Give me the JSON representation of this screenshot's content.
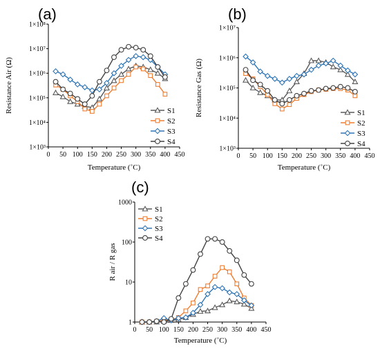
{
  "chart_data": [
    {
      "panel": "(a)",
      "type": "line",
      "xlabel": "Temperature (˚C)",
      "ylabel": "Resistance Air  (Ω)",
      "xlim": [
        0,
        450
      ],
      "xticks": [
        0,
        50,
        100,
        150,
        200,
        250,
        300,
        350,
        400,
        450
      ],
      "ylim": [
        1000,
        100000000
      ],
      "yscale": "log",
      "yticks": [
        {
          "v": 1000,
          "label": "1×10³"
        },
        {
          "v": 10000,
          "label": "1×10⁴"
        },
        {
          "v": 100000,
          "label": "1×10⁵"
        },
        {
          "v": 1000000,
          "label": "1×10⁶"
        },
        {
          "v": 10000000,
          "label": "1×10⁷"
        },
        {
          "v": 100000000,
          "label": "1×10⁸"
        }
      ],
      "grid": false,
      "legend_position": "right",
      "series": [
        {
          "name": "S1",
          "color": "#595959",
          "marker": "triangle",
          "x": [
            25,
            50,
            75,
            100,
            125,
            150,
            175,
            200,
            225,
            250,
            275,
            300,
            325,
            350,
            375,
            400
          ],
          "y": [
            160000,
            110000,
            70000,
            55000,
            45000,
            40000,
            90000,
            250000,
            500000,
            900000,
            1500000,
            2000000,
            1800000,
            1400000,
            1000000,
            600000
          ]
        },
        {
          "name": "S2",
          "color": "#ED7D31",
          "marker": "square",
          "x": [
            25,
            50,
            75,
            100,
            125,
            150,
            175,
            200,
            225,
            250,
            275,
            300,
            325,
            350,
            375,
            400
          ],
          "y": [
            330000,
            220000,
            120000,
            70000,
            35000,
            28000,
            55000,
            120000,
            250000,
            500000,
            900000,
            1800000,
            1500000,
            800000,
            350000,
            140000
          ]
        },
        {
          "name": "S3",
          "color": "#2E75B6",
          "marker": "diamond",
          "x": [
            25,
            50,
            75,
            100,
            125,
            150,
            175,
            200,
            225,
            250,
            275,
            300,
            325,
            350,
            375,
            400
          ],
          "y": [
            1200000,
            900000,
            550000,
            350000,
            270000,
            200000,
            220000,
            400000,
            1000000,
            2000000,
            3500000,
            5000000,
            4500000,
            3500000,
            1800000,
            900000
          ]
        },
        {
          "name": "S4",
          "color": "#404040",
          "marker": "circle",
          "x": [
            25,
            50,
            75,
            100,
            125,
            150,
            175,
            200,
            225,
            250,
            275,
            300,
            325,
            350,
            375,
            400
          ],
          "y": [
            450000,
            220000,
            150000,
            90000,
            55000,
            120000,
            450000,
            1300000,
            4500000,
            9000000,
            12000000,
            11000000,
            9000000,
            5000000,
            1800000,
            700000
          ]
        }
      ]
    },
    {
      "panel": "(b)",
      "type": "line",
      "xlabel": "Temperature (˚C)",
      "ylabel": "Resistance Gas  (Ω)",
      "xlim": [
        0,
        450
      ],
      "xticks": [
        0,
        50,
        100,
        150,
        200,
        250,
        300,
        350,
        400,
        450
      ],
      "ylim": [
        1000,
        10000000
      ],
      "yscale": "log",
      "yticks": [
        {
          "v": 1000,
          "label": "1×10³"
        },
        {
          "v": 10000,
          "label": "1×10⁴"
        },
        {
          "v": 100000,
          "label": "1×10⁵"
        },
        {
          "v": 1000000,
          "label": "1×10⁶"
        },
        {
          "v": 10000000,
          "label": "1×10⁷"
        }
      ],
      "grid": false,
      "legend_position": "right",
      "series": [
        {
          "name": "S1",
          "color": "#595959",
          "marker": "triangle",
          "x": [
            25,
            50,
            75,
            100,
            125,
            150,
            175,
            200,
            225,
            250,
            275,
            300,
            325,
            350,
            375,
            400
          ],
          "y": [
            180000,
            100000,
            70000,
            55000,
            40000,
            40000,
            80000,
            160000,
            300000,
            800000,
            800000,
            700000,
            500000,
            400000,
            280000,
            160000
          ]
        },
        {
          "name": "S2",
          "color": "#ED7D31",
          "marker": "square",
          "x": [
            25,
            50,
            75,
            100,
            125,
            150,
            175,
            200,
            225,
            250,
            275,
            300,
            325,
            350,
            375,
            400
          ],
          "y": [
            300000,
            200000,
            110000,
            60000,
            30000,
            20000,
            28000,
            45000,
            60000,
            75000,
            85000,
            90000,
            95000,
            95000,
            85000,
            55000
          ]
        },
        {
          "name": "S3",
          "color": "#2E75B6",
          "marker": "diamond",
          "x": [
            25,
            50,
            75,
            100,
            125,
            150,
            175,
            200,
            225,
            250,
            275,
            300,
            325,
            350,
            375,
            400
          ],
          "y": [
            1100000,
            700000,
            350000,
            250000,
            200000,
            150000,
            200000,
            250000,
            280000,
            400000,
            550000,
            650000,
            800000,
            550000,
            380000,
            280000
          ]
        },
        {
          "name": "S4",
          "color": "#404040",
          "marker": "circle",
          "x": [
            25,
            50,
            75,
            100,
            125,
            150,
            175,
            200,
            225,
            250,
            275,
            300,
            325,
            350,
            375,
            400
          ],
          "y": [
            400000,
            180000,
            130000,
            80000,
            40000,
            30000,
            40000,
            55000,
            65000,
            80000,
            85000,
            95000,
            100000,
            110000,
            100000,
            75000
          ]
        }
      ]
    },
    {
      "panel": "(c)",
      "type": "line",
      "xlabel": "Temperature (˚C)",
      "ylabel": "R air / R gas",
      "xlim": [
        0,
        450
      ],
      "xticks": [
        0,
        50,
        100,
        150,
        200,
        250,
        300,
        350,
        400,
        450
      ],
      "ylim": [
        1,
        1000
      ],
      "yscale": "log",
      "yticks": [
        {
          "v": 1,
          "label": "1"
        },
        {
          "v": 10,
          "label": "10"
        },
        {
          "v": 100,
          "label": "100"
        },
        {
          "v": 1000,
          "label": "1000"
        }
      ],
      "grid": false,
      "legend_position": "top-left",
      "series": [
        {
          "name": "S1",
          "color": "#595959",
          "marker": "triangle",
          "x": [
            25,
            50,
            75,
            100,
            125,
            150,
            175,
            200,
            225,
            250,
            275,
            300,
            325,
            350,
            375,
            400
          ],
          "y": [
            1,
            1,
            1,
            1.05,
            1.1,
            1.15,
            1.3,
            1.55,
            1.85,
            1.9,
            2.3,
            2.7,
            3.4,
            3.2,
            2.8,
            2.2
          ]
        },
        {
          "name": "S2",
          "color": "#ED7D31",
          "marker": "square",
          "x": [
            25,
            50,
            75,
            100,
            125,
            150,
            175,
            200,
            225,
            250,
            275,
            300,
            325,
            350,
            375,
            400
          ],
          "y": [
            1,
            1,
            1.05,
            1.1,
            1.15,
            1.3,
            1.9,
            3,
            6.5,
            8,
            14,
            23,
            18,
            9,
            4,
            2.6
          ]
        },
        {
          "name": "S3",
          "color": "#2E75B6",
          "marker": "diamond",
          "x": [
            25,
            50,
            75,
            100,
            125,
            150,
            175,
            200,
            225,
            250,
            275,
            300,
            325,
            350,
            375,
            400
          ],
          "y": [
            1,
            1,
            1.05,
            1.25,
            1.1,
            1.25,
            1.3,
            1.7,
            2.7,
            5,
            7.5,
            7,
            5.5,
            5,
            3.5,
            2.6
          ]
        },
        {
          "name": "S4",
          "color": "#404040",
          "marker": "circle",
          "x": [
            25,
            50,
            75,
            100,
            125,
            150,
            175,
            200,
            225,
            250,
            275,
            300,
            325,
            350,
            375,
            400
          ],
          "y": [
            1,
            1,
            1.05,
            1,
            1.2,
            4,
            9,
            20,
            50,
            120,
            120,
            100,
            60,
            35,
            15,
            9
          ]
        }
      ]
    }
  ]
}
